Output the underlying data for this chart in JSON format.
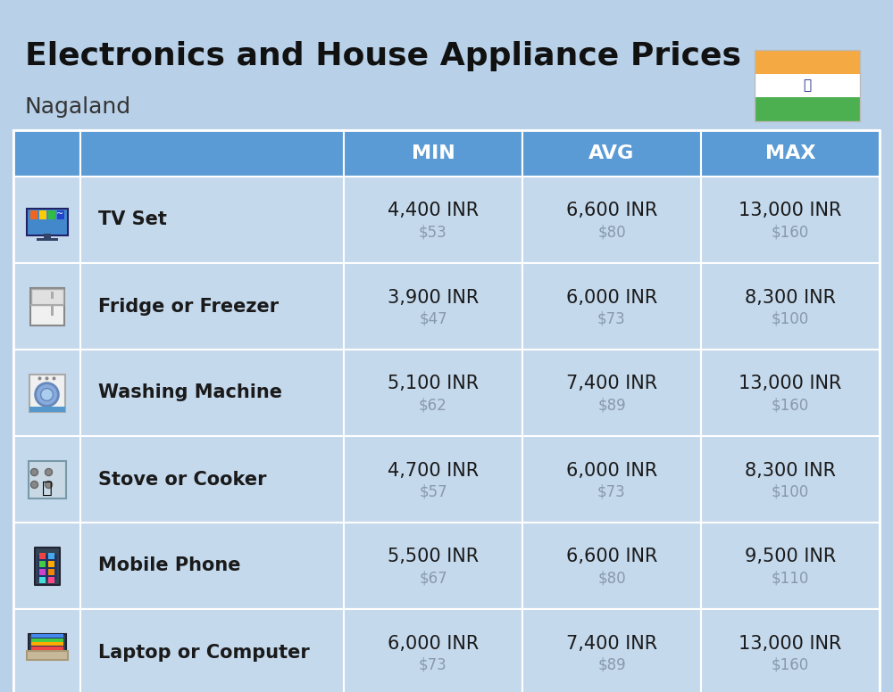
{
  "title": "Electronics and House Appliance Prices",
  "subtitle": "Nagaland",
  "bg_color": "#b8d0e8",
  "header_color": "#5b9bd5",
  "header_text_color": "#ffffff",
  "row_color": "#c5d9ed",
  "cell_text_color": "#1a1a1a",
  "dollar_text_color": "#8899aa",
  "columns": [
    "MIN",
    "AVG",
    "MAX"
  ],
  "rows": [
    {
      "label": "TV Set",
      "min_inr": "4,400 INR",
      "min_usd": "$53",
      "avg_inr": "6,600 INR",
      "avg_usd": "$80",
      "max_inr": "13,000 INR",
      "max_usd": "$160"
    },
    {
      "label": "Fridge or Freezer",
      "min_inr": "3,900 INR",
      "min_usd": "$47",
      "avg_inr": "6,000 INR",
      "avg_usd": "$73",
      "max_inr": "8,300 INR",
      "max_usd": "$100"
    },
    {
      "label": "Washing Machine",
      "min_inr": "5,100 INR",
      "min_usd": "$62",
      "avg_inr": "7,400 INR",
      "avg_usd": "$89",
      "max_inr": "13,000 INR",
      "max_usd": "$160"
    },
    {
      "label": "Stove or Cooker",
      "min_inr": "4,700 INR",
      "min_usd": "$57",
      "avg_inr": "6,000 INR",
      "avg_usd": "$73",
      "max_inr": "8,300 INR",
      "max_usd": "$100"
    },
    {
      "label": "Mobile Phone",
      "min_inr": "5,500 INR",
      "min_usd": "$67",
      "avg_inr": "6,600 INR",
      "avg_usd": "$80",
      "max_inr": "9,500 INR",
      "max_usd": "$110"
    },
    {
      "label": "Laptop or Computer",
      "min_inr": "6,000 INR",
      "min_usd": "$73",
      "avg_inr": "7,400 INR",
      "avg_usd": "$89",
      "max_inr": "13,000 INR",
      "max_usd": "$160"
    }
  ],
  "flag_orange": "#F4A942",
  "flag_white": "#FFFFFF",
  "flag_green": "#4CAF50",
  "flag_chakra": "#1A237E",
  "title_fontsize": 26,
  "subtitle_fontsize": 18,
  "header_fontsize": 16,
  "label_fontsize": 15,
  "inr_fontsize": 15,
  "usd_fontsize": 12
}
